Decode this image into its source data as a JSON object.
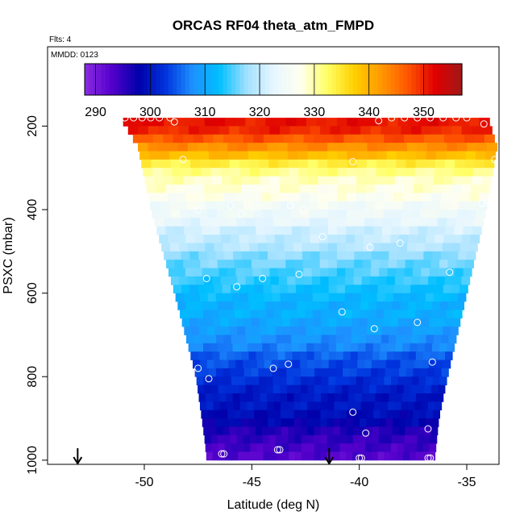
{
  "chart_data": {
    "type": "heatmap",
    "title": "ORCAS RF04 theta_atm_FMPD",
    "corner_labels": [
      "Flts: 4",
      "MMDD: 0123"
    ],
    "xlabel": "Latitude (deg N)",
    "ylabel": "PSXC (mbar)",
    "xlim": [
      -54.5,
      -33.5
    ],
    "ylim": [
      1010,
      10
    ],
    "x_ticks": [
      -50,
      -45,
      -40,
      -35
    ],
    "y_ticks": [
      200,
      400,
      600,
      800,
      1000
    ],
    "colorbar": {
      "range": [
        288,
        357
      ],
      "ticks": [
        290,
        300,
        310,
        320,
        330,
        340,
        350
      ],
      "colors": [
        "#8a2be2",
        "#5500cc",
        "#0000aa",
        "#0033dd",
        "#1e90ff",
        "#00bfff",
        "#a0e0ff",
        "#e6f6ff",
        "#fffff0",
        "#ffff66",
        "#ffd000",
        "#ff9900",
        "#ff5500",
        "#e00000",
        "#a01818"
      ]
    },
    "pressure_levels": [
      190,
      210,
      230,
      250,
      270,
      290,
      310,
      330,
      350,
      370,
      390,
      410,
      430,
      450,
      470,
      490,
      510,
      530,
      550,
      570,
      590,
      610,
      630,
      650,
      670,
      690,
      710,
      730,
      750,
      770,
      790,
      810,
      830,
      850,
      870,
      890,
      910,
      930,
      950,
      970,
      990
    ],
    "theta_levels": [
      351,
      350,
      347,
      343,
      339,
      334,
      331,
      329,
      328,
      327,
      325,
      324,
      323,
      321,
      320,
      319,
      317,
      316,
      315,
      314,
      313,
      312,
      311,
      311,
      310,
      309,
      308,
      307,
      305,
      304,
      303,
      302,
      301,
      300,
      300,
      299,
      298,
      296,
      295,
      294,
      293
    ],
    "curtain_left_edge": [
      [
        180,
        -51.1
      ],
      [
        250,
        -50.3
      ],
      [
        400,
        -49.7
      ],
      [
        600,
        -48.6
      ],
      [
        800,
        -47.6
      ],
      [
        950,
        -47.2
      ],
      [
        1000,
        -47.1
      ]
    ],
    "curtain_right_edge": [
      [
        180,
        -34.0
      ],
      [
        250,
        -33.6
      ],
      [
        400,
        -34.1
      ],
      [
        600,
        -35.0
      ],
      [
        800,
        -35.9
      ],
      [
        900,
        -36.3
      ],
      [
        1000,
        -36.5
      ]
    ],
    "obs_points": [
      [
        -50.9,
        180
      ],
      [
        -50.5,
        180
      ],
      [
        -50.1,
        180
      ],
      [
        -49.7,
        180
      ],
      [
        -49.3,
        180
      ],
      [
        -48.8,
        180
      ],
      [
        -48.6,
        190
      ],
      [
        -39.1,
        187
      ],
      [
        -38.5,
        180
      ],
      [
        -37.9,
        180
      ],
      [
        -37.3,
        180
      ],
      [
        -36.7,
        180
      ],
      [
        -36.1,
        180
      ],
      [
        -35.5,
        180
      ],
      [
        -35.0,
        180
      ],
      [
        -34.2,
        195
      ],
      [
        -33.7,
        280
      ],
      [
        -48.2,
        280
      ],
      [
        -40.3,
        285
      ],
      [
        -38.1,
        375
      ],
      [
        -34.3,
        385
      ],
      [
        -34.0,
        380
      ],
      [
        -47.5,
        400
      ],
      [
        -46.0,
        390
      ],
      [
        -45.5,
        410
      ],
      [
        -44.8,
        395
      ],
      [
        -43.2,
        390
      ],
      [
        -42.6,
        400
      ],
      [
        -41.7,
        465
      ],
      [
        -39.5,
        490
      ],
      [
        -38.1,
        480
      ],
      [
        -47.1,
        565
      ],
      [
        -45.7,
        585
      ],
      [
        -44.5,
        565
      ],
      [
        -42.8,
        555
      ],
      [
        -35.8,
        550
      ],
      [
        -40.8,
        645
      ],
      [
        -39.3,
        685
      ],
      [
        -37.3,
        670
      ],
      [
        -47.5,
        780
      ],
      [
        -47.0,
        805
      ],
      [
        -44.0,
        780
      ],
      [
        -43.3,
        770
      ],
      [
        -36.6,
        765
      ],
      [
        -40.3,
        885
      ],
      [
        -36.8,
        925
      ],
      [
        -39.7,
        935
      ],
      [
        -43.7,
        975
      ],
      [
        -43.8,
        975
      ],
      [
        -46.3,
        985
      ],
      [
        -46.4,
        985
      ],
      [
        -39.9,
        995
      ],
      [
        -40.0,
        995
      ],
      [
        -36.7,
        995
      ],
      [
        -36.8,
        995
      ]
    ],
    "flight_markers_lat": [
      -53.1,
      -41.4
    ]
  }
}
